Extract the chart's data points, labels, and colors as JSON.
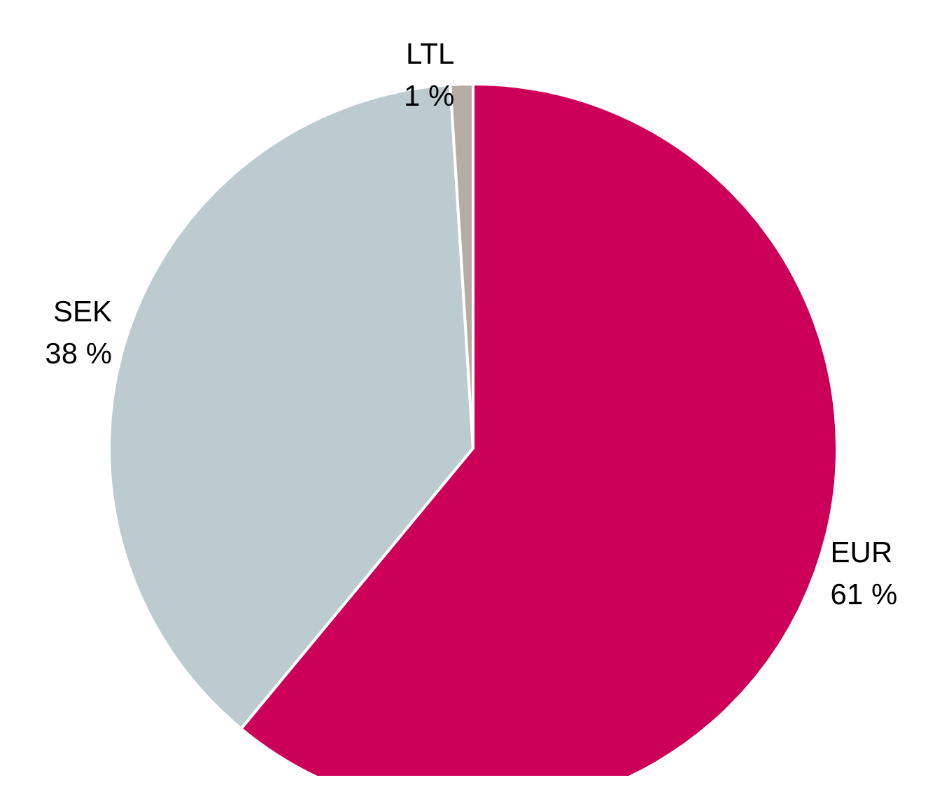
{
  "chart_data": {
    "type": "pie",
    "categories": [
      "EUR",
      "SEK",
      "LTL"
    ],
    "values": [
      61,
      38,
      1
    ],
    "colors": [
      "#cc0058",
      "#bccbd0",
      "#b5ada3"
    ],
    "value_labels": [
      "61 %",
      "38 %",
      "1 %"
    ],
    "legend": false
  }
}
